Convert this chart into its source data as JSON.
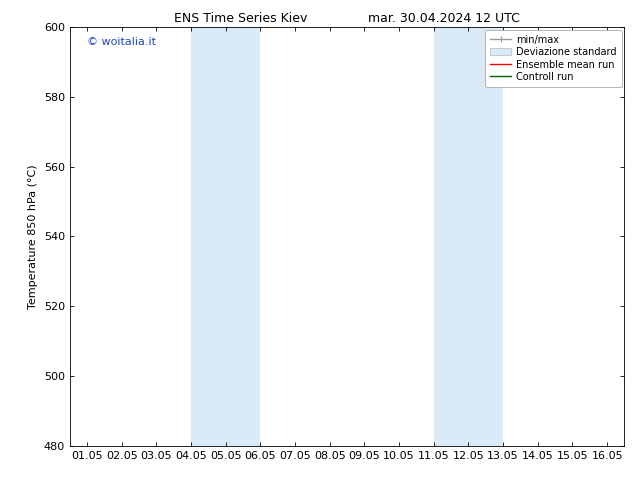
{
  "title_left": "ENS Time Series Kiev",
  "title_right": "mar. 30.04.2024 12 UTC",
  "ylabel": "Temperature 850 hPa (°C)",
  "ylim": [
    480,
    600
  ],
  "yticks": [
    480,
    500,
    520,
    540,
    560,
    580,
    600
  ],
  "xlim": [
    0.5,
    16.5
  ],
  "xtick_labels": [
    "01.05",
    "02.05",
    "03.05",
    "04.05",
    "05.05",
    "06.05",
    "07.05",
    "08.05",
    "09.05",
    "10.05",
    "11.05",
    "12.05",
    "13.05",
    "14.05",
    "15.05",
    "16.05"
  ],
  "xtick_positions": [
    1,
    2,
    3,
    4,
    5,
    6,
    7,
    8,
    9,
    10,
    11,
    12,
    13,
    14,
    15,
    16
  ],
  "shaded_regions": [
    {
      "xmin": 4.0,
      "xmax": 6.0,
      "color": "#daeaf7"
    },
    {
      "xmin": 11.0,
      "xmax": 13.0,
      "color": "#daeaf7"
    }
  ],
  "watermark_text": "© woitalia.it",
  "watermark_color": "#2244cc",
  "bg_color": "#ffffff",
  "spine_color": "#000000",
  "title_fontsize": 9,
  "axis_fontsize": 8,
  "ylabel_fontsize": 8,
  "watermark_fontsize": 8,
  "legend_fontsize": 7
}
